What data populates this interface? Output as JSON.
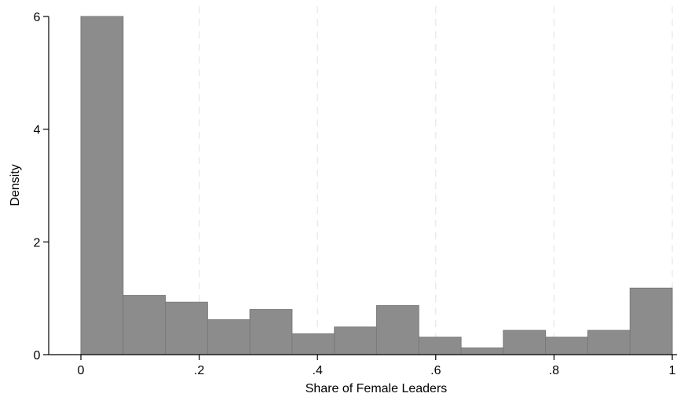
{
  "chart_data": {
    "type": "bar",
    "subtype": "histogram",
    "title": "",
    "xlabel": "Share of Female Leaders",
    "ylabel": "Density",
    "xlim": [
      0,
      1
    ],
    "ylim": [
      0,
      6
    ],
    "bin_edges": [
      0,
      0.0714,
      0.1429,
      0.2143,
      0.2857,
      0.3571,
      0.4286,
      0.5,
      0.5714,
      0.6429,
      0.7143,
      0.7857,
      0.8571,
      0.9286,
      1.0
    ],
    "values": [
      6.0,
      1.05,
      0.93,
      0.62,
      0.8,
      0.37,
      0.49,
      0.87,
      0.31,
      0.12,
      0.43,
      0.31,
      0.43,
      1.18
    ],
    "x_ticks": [
      {
        "value": 0,
        "label": "0"
      },
      {
        "value": 0.2,
        "label": ".2"
      },
      {
        "value": 0.4,
        "label": ".4"
      },
      {
        "value": 0.6,
        "label": ".6"
      },
      {
        "value": 0.8,
        "label": ".8"
      },
      {
        "value": 1,
        "label": "1"
      }
    ],
    "y_ticks": [
      {
        "value": 0,
        "label": "0"
      },
      {
        "value": 2,
        "label": "2"
      },
      {
        "value": 4,
        "label": "4"
      },
      {
        "value": 6,
        "label": "6"
      }
    ],
    "grid": "vertical dashed",
    "bar_color": "#8c8c8c",
    "bar_edge_color": "#7a7a7a"
  }
}
